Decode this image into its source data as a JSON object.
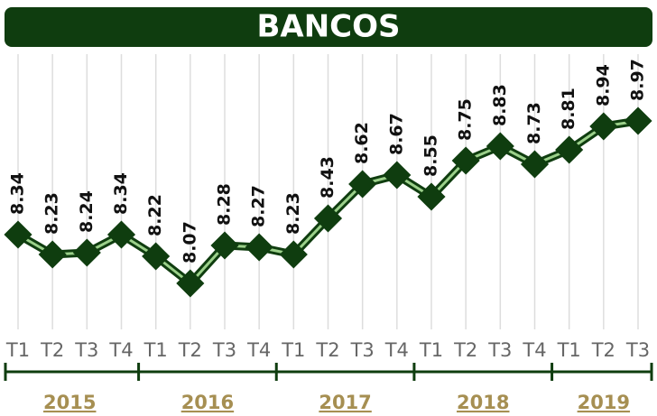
{
  "chart_data": {
    "type": "line",
    "title": "BANCOS",
    "categories": [
      "T1",
      "T2",
      "T3",
      "T4",
      "T1",
      "T2",
      "T3",
      "T4",
      "T1",
      "T2",
      "T3",
      "T4",
      "T1",
      "T2",
      "T3",
      "T4",
      "T1",
      "T2",
      "T3"
    ],
    "groups": [
      "2015",
      "2016",
      "2017",
      "2018",
      "2019"
    ],
    "values": [
      8.34,
      8.23,
      8.24,
      8.34,
      8.22,
      8.07,
      8.28,
      8.27,
      8.23,
      8.43,
      8.62,
      8.67,
      8.55,
      8.75,
      8.83,
      8.73,
      8.81,
      8.94,
      8.97
    ],
    "color": "#0f3d0f",
    "line_inner_color": "#9bd08a",
    "grid": true
  }
}
